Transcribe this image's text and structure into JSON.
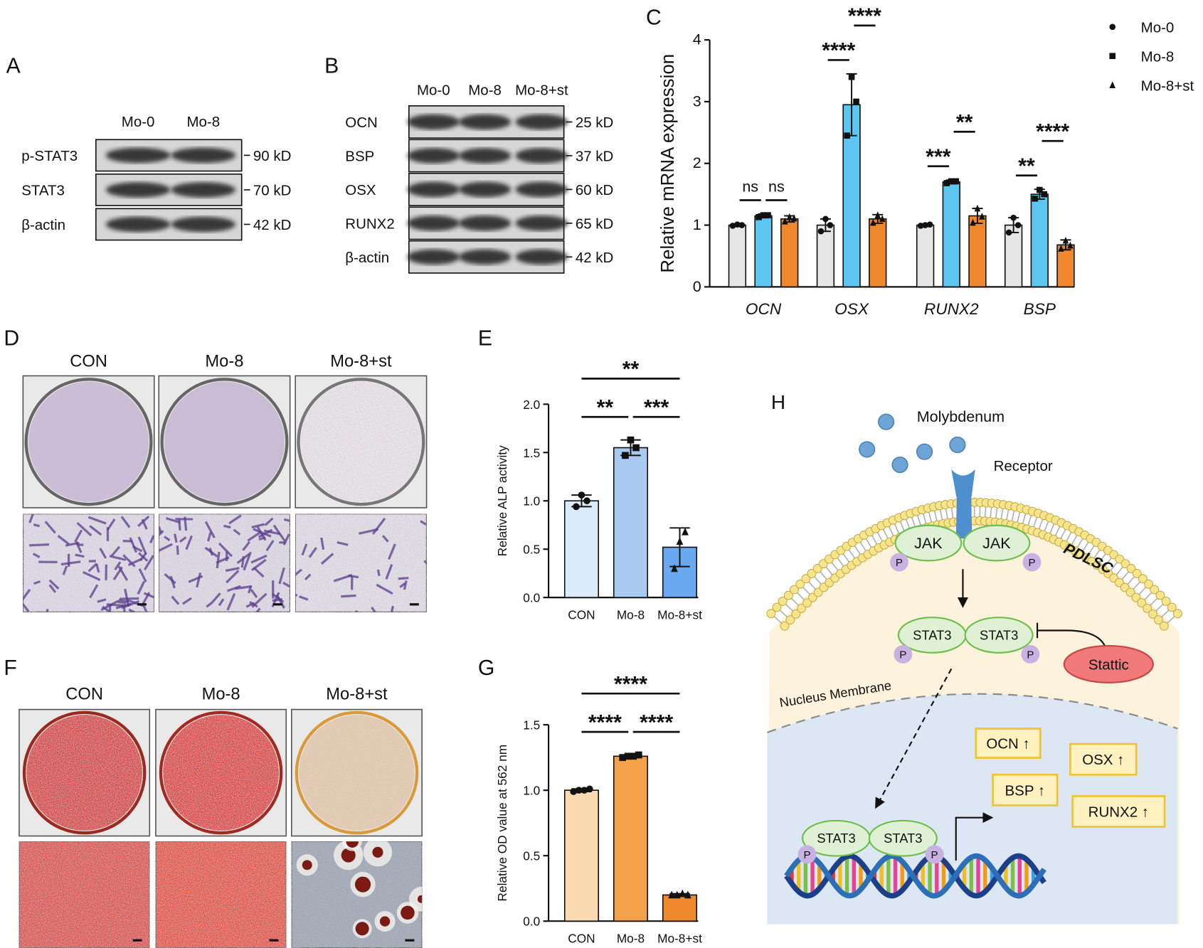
{
  "blot_a": {
    "label": "A",
    "columns": [
      "Mo-0",
      "Mo-8"
    ],
    "rows": [
      [
        "p-STAT3",
        "90 kD"
      ],
      [
        "STAT3",
        "70 kD"
      ],
      [
        "β-actin",
        "42 kD"
      ]
    ]
  },
  "blot_b": {
    "label": "B",
    "columns": [
      "Mo-0",
      "Mo-8",
      "Mo-8+st"
    ],
    "rows": [
      [
        "OCN",
        "25 kD"
      ],
      [
        "BSP",
        "37 kD"
      ],
      [
        "OSX",
        "60 kD"
      ],
      [
        "RUNX2",
        "65 kD"
      ],
      [
        "β-actin",
        "42 kD"
      ]
    ]
  },
  "stain_d": {
    "label": "D",
    "columns": [
      "CON",
      "Mo-8",
      "Mo-8+st"
    ]
  },
  "stain_f": {
    "label": "F",
    "columns": [
      "CON",
      "Mo-8",
      "Mo-8+st"
    ]
  },
  "chart_data": [
    {
      "type": "grouped_bar",
      "panel_label": "C",
      "ylabel": "Relative mRNA expression",
      "categories": [
        "OCN",
        "OSX",
        "RUNX2",
        "BSP"
      ],
      "series": [
        {
          "name": "Mo-0",
          "color": "#e6e6e6",
          "marker": "circle",
          "values": [
            1.0,
            1.0,
            1.0,
            1.0
          ],
          "errors": [
            0.02,
            0.1,
            0.02,
            0.12
          ],
          "points": [
            [
              0.99,
              1.01,
              1.0
            ],
            [
              0.9,
              1.1,
              1.0
            ],
            [
              0.99,
              1.0,
              1.01
            ],
            [
              0.88,
              1.12,
              1.0
            ]
          ]
        },
        {
          "name": "Mo-8",
          "color": "#5cc6f0",
          "marker": "square",
          "values": [
            1.15,
            2.95,
            1.7,
            1.5
          ],
          "errors": [
            0.03,
            0.5,
            0.03,
            0.08
          ],
          "points": [
            [
              1.13,
              1.16,
              1.16
            ],
            [
              2.45,
              3.4,
              3.0
            ],
            [
              1.68,
              1.71,
              1.71
            ],
            [
              1.43,
              1.57,
              1.5
            ]
          ]
        },
        {
          "name": "Mo-8+st",
          "color": "#f0892e",
          "marker": "triangle",
          "values": [
            1.1,
            1.1,
            1.15,
            0.68
          ],
          "errors": [
            0.05,
            0.07,
            0.12,
            0.08
          ],
          "points": [
            [
              1.06,
              1.13,
              1.11
            ],
            [
              1.04,
              1.16,
              1.1
            ],
            [
              1.04,
              1.27,
              1.14
            ],
            [
              0.62,
              0.75,
              0.67
            ]
          ]
        }
      ],
      "significance": [
        [
          "ns",
          "ns"
        ],
        [
          "****",
          "****"
        ],
        [
          "***",
          "**"
        ],
        [
          "**",
          "****"
        ]
      ],
      "ylim": [
        0,
        4
      ],
      "yticks": [
        0,
        1,
        2,
        3,
        4
      ],
      "legend": "top-right"
    },
    {
      "type": "bar",
      "panel_label": "E",
      "ylabel": "Relative ALP activity",
      "categories": [
        "CON",
        "Mo-8",
        "Mo-8+st"
      ],
      "values": [
        1.0,
        1.55,
        0.52
      ],
      "errors": [
        0.06,
        0.08,
        0.2
      ],
      "colors": [
        "#dcebfa",
        "#a9cbf2",
        "#6aa9ef"
      ],
      "markers": [
        "circle",
        "square",
        "triangle"
      ],
      "points": [
        [
          0.94,
          1.06,
          1.0
        ],
        [
          1.47,
          1.63,
          1.55
        ],
        [
          0.3,
          0.58,
          0.68
        ]
      ],
      "significance": [
        "**",
        "**",
        "***"
      ],
      "ylim": [
        0,
        2
      ],
      "yticks": [
        {
          "value": 0,
          "label": "0.0"
        },
        0.5,
        {
          "value": 1,
          "label": "1.0"
        },
        1.5,
        {
          "value": 2,
          "label": "2.0"
        }
      ]
    },
    {
      "type": "bar",
      "panel_label": "G",
      "ylabel": "Relative OD value at 562 nm",
      "categories": [
        "CON",
        "Mo-8",
        "Mo-8+st"
      ],
      "values": [
        1.0,
        1.26,
        0.2
      ],
      "errors": [
        0.01,
        0.01,
        0.01
      ],
      "colors": [
        "#fbd9b1",
        "#f3a14b",
        "#ee8a2b"
      ],
      "markers": [
        "circle",
        "square",
        "triangle"
      ],
      "points": [
        [
          0.99,
          1.0,
          1.0,
          1.01
        ],
        [
          1.25,
          1.26,
          1.26,
          1.27
        ],
        [
          0.2,
          0.2,
          0.21,
          0.2
        ]
      ],
      "significance": [
        "****",
        "****",
        "****"
      ],
      "ylim": [
        0,
        1.5
      ],
      "yticks": [
        {
          "value": 0,
          "label": "0.0"
        },
        0.5,
        {
          "value": 1,
          "label": "1.0"
        },
        1.5
      ]
    }
  ],
  "diagram": {
    "label": "H",
    "ligand": "Molybdenum",
    "receptor": "Receptor",
    "kinase": "JAK",
    "phospho": "P",
    "cell": "PDLSC",
    "factor": "STAT3",
    "inhibitor": "Stattic",
    "membrane": "Nucleus Membrane",
    "genes": [
      "OCN ↑",
      "OSX ↑",
      "BSP ↑",
      "RUNX2 ↑"
    ]
  }
}
